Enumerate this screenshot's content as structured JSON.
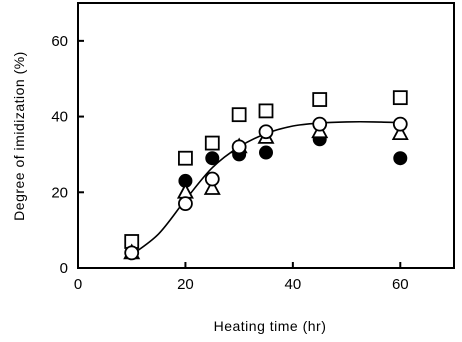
{
  "chart_data": {
    "type": "scatter",
    "xlabel": "Heating time (hr)",
    "ylabel": "Degree of imidization (%)",
    "xlim": [
      0,
      70
    ],
    "ylim": [
      0,
      70
    ],
    "x_ticks": [
      0,
      20,
      40,
      60
    ],
    "y_ticks": [
      0,
      20,
      40,
      60
    ],
    "grid": false,
    "series": [
      {
        "marker": "open-square",
        "points": [
          [
            10,
            7
          ],
          [
            20,
            29
          ],
          [
            25,
            33
          ],
          [
            30,
            40.5
          ],
          [
            35,
            41.5
          ],
          [
            45,
            44.5
          ],
          [
            60,
            45
          ]
        ]
      },
      {
        "marker": "filled-circle",
        "points": [
          [
            10,
            4
          ],
          [
            20,
            23
          ],
          [
            25,
            29
          ],
          [
            30,
            30
          ],
          [
            35,
            30.5
          ],
          [
            45,
            34
          ],
          [
            60,
            29
          ]
        ]
      },
      {
        "marker": "open-triangle",
        "points": [
          [
            10,
            4
          ],
          [
            20,
            20
          ],
          [
            25,
            21
          ],
          [
            30,
            32
          ],
          [
            35,
            34.5
          ],
          [
            45,
            36
          ],
          [
            60,
            35.5
          ]
        ]
      },
      {
        "marker": "open-circle",
        "points": [
          [
            10,
            4
          ],
          [
            20,
            17
          ],
          [
            25,
            23.5
          ],
          [
            30,
            32
          ],
          [
            35,
            36
          ],
          [
            45,
            38
          ],
          [
            60,
            38
          ]
        ]
      }
    ],
    "fit_curve": [
      [
        10,
        3.5
      ],
      [
        15,
        9
      ],
      [
        20,
        18
      ],
      [
        25,
        26.5
      ],
      [
        30,
        32
      ],
      [
        35,
        35.5
      ],
      [
        40,
        37.5
      ],
      [
        45,
        38.3
      ],
      [
        50,
        38.6
      ],
      [
        55,
        38.6
      ],
      [
        60,
        38.4
      ]
    ]
  }
}
